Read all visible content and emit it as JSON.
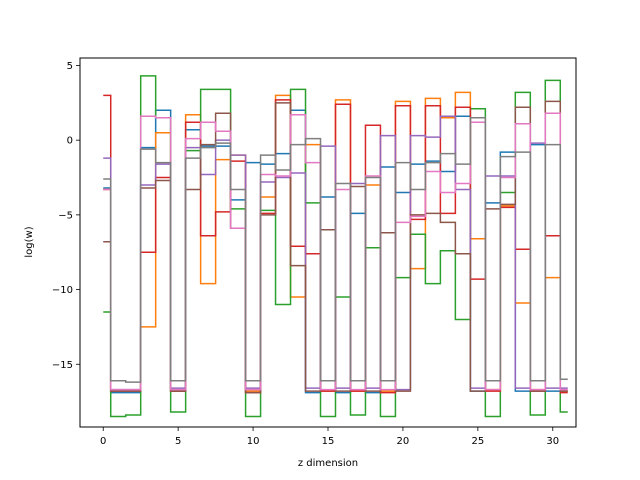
{
  "chart_data": {
    "type": "line",
    "drawstyle": "steps-mid",
    "xlabel": "z dimension",
    "ylabel": "log(w)",
    "xlim": [
      -1.55,
      31.55
    ],
    "ylim": [
      -19.2,
      5.5
    ],
    "xticks": [
      0,
      5,
      10,
      15,
      20,
      25,
      30
    ],
    "yticks": [
      -15,
      -10,
      -5,
      0,
      5
    ],
    "xtick_labels": [
      "0",
      "5",
      "10",
      "15",
      "20",
      "25",
      "30"
    ],
    "ytick_labels": [
      "−15",
      "−10",
      "−5",
      "0",
      "5"
    ],
    "grid": false,
    "x": [
      0,
      1,
      2,
      3,
      4,
      5,
      6,
      7,
      8,
      9,
      10,
      11,
      12,
      13,
      14,
      15,
      16,
      17,
      18,
      19,
      20,
      21,
      22,
      23,
      24,
      25,
      26,
      27,
      28,
      29,
      30,
      31
    ],
    "series": [
      {
        "color": "#1f77b4",
        "values": [
          -3.2,
          -16.9,
          -16.9,
          -0.5,
          2.0,
          -16.8,
          0.7,
          -0.4,
          -0.4,
          -4.0,
          -1.5,
          -1.6,
          -0.9,
          2.0,
          -16.9,
          -3.8,
          -16.9,
          -4.9,
          -16.9,
          -1.8,
          -3.5,
          -1.6,
          -1.4,
          -2.1,
          1.6,
          -16.8,
          -4.2,
          -0.8,
          -16.8,
          -0.3,
          -16.8,
          -16.8
        ]
      },
      {
        "color": "#ff7f0e",
        "values": [
          -3.3,
          -16.8,
          -16.8,
          -12.5,
          0.5,
          -16.8,
          1.7,
          -9.6,
          -1.3,
          -1.0,
          -16.8,
          -3.8,
          3.0,
          -10.5,
          -0.3,
          -16.8,
          2.7,
          -16.8,
          -3.0,
          -16.8,
          2.6,
          -8.6,
          2.8,
          1.5,
          3.2,
          -6.6,
          -16.7,
          -4.4,
          -10.9,
          -16.7,
          -9.2,
          -16.8
        ]
      },
      {
        "color": "#2ca02c",
        "values": [
          -11.5,
          -18.5,
          -18.4,
          4.3,
          1.5,
          -18.2,
          -0.7,
          3.4,
          3.4,
          -4.6,
          -18.5,
          -4.7,
          -11.0,
          3.4,
          -4.2,
          -18.5,
          -10.5,
          -18.4,
          -7.2,
          -18.5,
          -9.2,
          -6.3,
          -9.6,
          -7.4,
          -12.0,
          2.1,
          -18.5,
          -3.5,
          3.2,
          -18.4,
          4.0,
          -18.2
        ]
      },
      {
        "color": "#d62728",
        "values": [
          3.0,
          -16.8,
          -16.8,
          -7.5,
          -2.5,
          -16.8,
          1.2,
          -6.4,
          -4.8,
          -1.4,
          -16.9,
          -4.9,
          2.7,
          -7.1,
          -7.6,
          -16.8,
          2.4,
          -16.8,
          1.0,
          -16.9,
          2.3,
          -5.3,
          2.3,
          -4.9,
          2.2,
          -9.3,
          -16.8,
          -4.5,
          -7.3,
          -16.8,
          -6.4,
          -16.9
        ]
      },
      {
        "color": "#9467bd",
        "values": [
          -1.2,
          -16.7,
          -16.7,
          -3.0,
          -1.6,
          -16.6,
          -0.5,
          -2.3,
          0.0,
          -1.0,
          -16.6,
          -2.8,
          -2.5,
          -2.2,
          -16.6,
          -0.4,
          -16.6,
          -2.9,
          -16.6,
          0.3,
          -16.7,
          0.3,
          0.2,
          1.6,
          -3.3,
          -16.6,
          -2.4,
          -2.4,
          -16.6,
          -0.2,
          -16.6,
          -16.6
        ]
      },
      {
        "color": "#8c564b",
        "values": [
          -6.8,
          -16.8,
          -16.8,
          -3.2,
          -2.7,
          -16.8,
          -3.3,
          -0.3,
          1.8,
          -5.9,
          -16.9,
          -5.0,
          2.5,
          -8.4,
          -16.8,
          -6.0,
          -16.8,
          -3.1,
          -16.8,
          -6.2,
          -16.8,
          -5.0,
          -4.9,
          -5.5,
          -7.6,
          -16.8,
          -4.6,
          -4.3,
          2.2,
          -16.8,
          2.6,
          -16.8
        ]
      },
      {
        "color": "#e377c2",
        "values": [
          -3.3,
          -16.7,
          -16.7,
          1.6,
          1.5,
          -16.7,
          0.1,
          1.2,
          0.6,
          -5.9,
          -16.7,
          -2.3,
          -2.4,
          1.7,
          -1.5,
          -16.7,
          -3.3,
          -16.7,
          -2.4,
          -16.7,
          -5.5,
          -5.1,
          -2.1,
          -3.5,
          -2.9,
          1.2,
          -16.7,
          -2.5,
          1.1,
          -16.7,
          1.8,
          -16.7
        ]
      },
      {
        "color": "#7f7f7f",
        "values": [
          -2.6,
          -16.1,
          -16.2,
          -0.6,
          -1.5,
          -16.1,
          -1.2,
          -0.5,
          -0.2,
          -3.3,
          -16.1,
          -1.0,
          -2.0,
          -0.3,
          0.1,
          -16.1,
          -2.9,
          -16.1,
          -2.5,
          -16.1,
          -1.5,
          -3.3,
          -1.5,
          -0.9,
          -1.6,
          1.5,
          -16.1,
          -1.1,
          -0.8,
          -16.1,
          -0.3,
          -16.0
        ]
      }
    ]
  }
}
